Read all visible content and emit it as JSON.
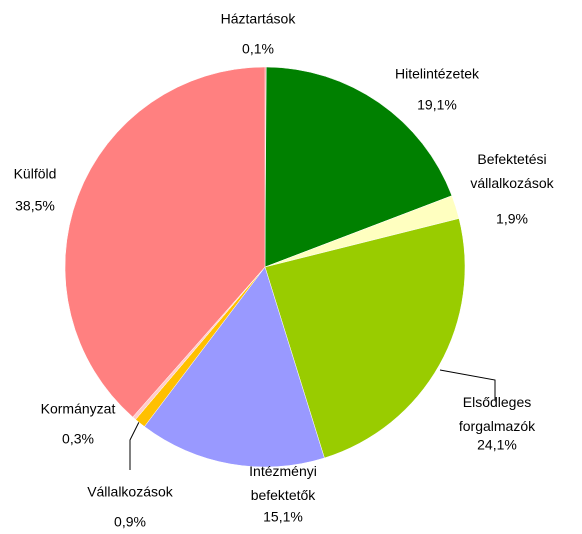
{
  "chart_data": {
    "type": "pie",
    "categories": [
      "Háztartások",
      "Hitelintézetek",
      "Befektetési vállalkozások",
      "Elsődleges forgalmazók",
      "Intézményi befektetők",
      "Vállalkozások",
      "Kormányzat",
      "Külföld"
    ],
    "values": [
      0.1,
      19.1,
      1.9,
      24.1,
      15.1,
      0.9,
      0.3,
      38.5
    ],
    "value_labels": [
      "0,1%",
      "19,1%",
      "1,9%",
      "24,1%",
      "15,1%",
      "0,9%",
      "0,3%",
      "38,5%"
    ],
    "colors": [
      "#ff8080",
      "#008000",
      "#ffffc0",
      "#99cc00",
      "#9999ff",
      "#ffc000",
      "#ffcccc",
      "#ff8080"
    ]
  }
}
